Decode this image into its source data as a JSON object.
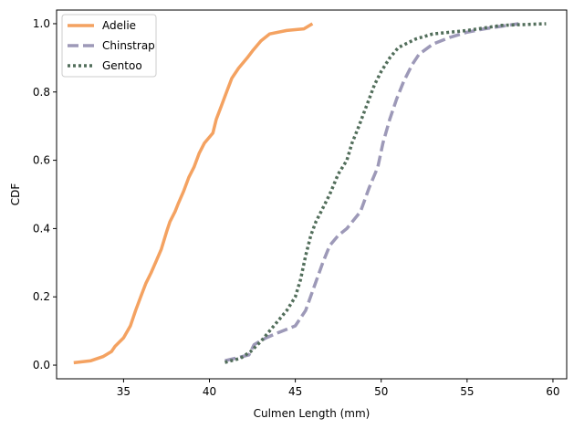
{
  "chart_data": {
    "type": "line",
    "title": "",
    "xlabel": "Culmen Length (mm)",
    "ylabel": "CDF",
    "xlim": [
      31.1,
      60.8
    ],
    "ylim": [
      -0.04,
      1.04
    ],
    "xticks": [
      35,
      40,
      45,
      50,
      55,
      60
    ],
    "yticks": [
      0.0,
      0.2,
      0.4,
      0.6,
      0.8,
      1.0
    ],
    "xtick_labels": [
      "35",
      "40",
      "45",
      "50",
      "55",
      "60"
    ],
    "ytick_labels": [
      "0.0",
      "0.2",
      "0.4",
      "0.6",
      "0.8",
      "1.0"
    ],
    "grid": false,
    "legend_position": "top-left",
    "series": [
      {
        "name": "Adelie",
        "color": "#f4a261",
        "style": "solid",
        "points": [
          [
            32.1,
            0.007
          ],
          [
            33.1,
            0.013
          ],
          [
            33.8,
            0.025
          ],
          [
            34.3,
            0.04
          ],
          [
            34.5,
            0.055
          ],
          [
            35.0,
            0.08
          ],
          [
            35.4,
            0.115
          ],
          [
            35.7,
            0.16
          ],
          [
            36.0,
            0.2
          ],
          [
            36.3,
            0.24
          ],
          [
            36.6,
            0.27
          ],
          [
            36.9,
            0.305
          ],
          [
            37.2,
            0.34
          ],
          [
            37.5,
            0.39
          ],
          [
            37.7,
            0.42
          ],
          [
            38.0,
            0.45
          ],
          [
            38.2,
            0.475
          ],
          [
            38.5,
            0.51
          ],
          [
            38.8,
            0.55
          ],
          [
            39.1,
            0.58
          ],
          [
            39.4,
            0.62
          ],
          [
            39.7,
            0.65
          ],
          [
            40.2,
            0.68
          ],
          [
            40.4,
            0.72
          ],
          [
            40.7,
            0.76
          ],
          [
            41.0,
            0.8
          ],
          [
            41.3,
            0.84
          ],
          [
            41.7,
            0.87
          ],
          [
            42.2,
            0.9
          ],
          [
            42.5,
            0.92
          ],
          [
            43.0,
            0.95
          ],
          [
            43.5,
            0.97
          ],
          [
            44.5,
            0.98
          ],
          [
            45.5,
            0.985
          ],
          [
            46.0,
            1.0
          ]
        ]
      },
      {
        "name": "Chinstrap",
        "color": "#9d99b8",
        "style": "dashed",
        "points": [
          [
            40.9,
            0.013
          ],
          [
            41.5,
            0.02
          ],
          [
            42.3,
            0.03
          ],
          [
            42.6,
            0.06
          ],
          [
            43.3,
            0.08
          ],
          [
            44.0,
            0.095
          ],
          [
            45.0,
            0.115
          ],
          [
            45.6,
            0.16
          ],
          [
            46.1,
            0.23
          ],
          [
            46.6,
            0.3
          ],
          [
            47.0,
            0.35
          ],
          [
            47.5,
            0.38
          ],
          [
            48.0,
            0.4
          ],
          [
            48.8,
            0.45
          ],
          [
            49.3,
            0.52
          ],
          [
            49.8,
            0.58
          ],
          [
            50.1,
            0.65
          ],
          [
            50.5,
            0.72
          ],
          [
            50.9,
            0.78
          ],
          [
            51.3,
            0.83
          ],
          [
            51.8,
            0.88
          ],
          [
            52.2,
            0.91
          ],
          [
            53.0,
            0.94
          ],
          [
            54.0,
            0.96
          ],
          [
            55.0,
            0.975
          ],
          [
            56.0,
            0.985
          ],
          [
            58.0,
            1.0
          ]
        ]
      },
      {
        "name": "Gentoo",
        "color": "#526e5b",
        "style": "dotted",
        "points": [
          [
            40.9,
            0.008
          ],
          [
            41.8,
            0.02
          ],
          [
            42.4,
            0.04
          ],
          [
            43.0,
            0.07
          ],
          [
            43.5,
            0.1
          ],
          [
            44.0,
            0.13
          ],
          [
            44.5,
            0.16
          ],
          [
            45.0,
            0.2
          ],
          [
            45.3,
            0.25
          ],
          [
            45.6,
            0.32
          ],
          [
            45.9,
            0.38
          ],
          [
            46.2,
            0.42
          ],
          [
            46.5,
            0.45
          ],
          [
            47.0,
            0.5
          ],
          [
            47.5,
            0.56
          ],
          [
            48.0,
            0.6
          ],
          [
            48.3,
            0.65
          ],
          [
            48.7,
            0.7
          ],
          [
            49.0,
            0.74
          ],
          [
            49.3,
            0.78
          ],
          [
            49.6,
            0.82
          ],
          [
            50.0,
            0.86
          ],
          [
            50.5,
            0.9
          ],
          [
            51.0,
            0.93
          ],
          [
            52.0,
            0.955
          ],
          [
            53.0,
            0.97
          ],
          [
            55.0,
            0.98
          ],
          [
            57.0,
            0.995
          ],
          [
            59.6,
            1.0
          ]
        ]
      }
    ]
  }
}
